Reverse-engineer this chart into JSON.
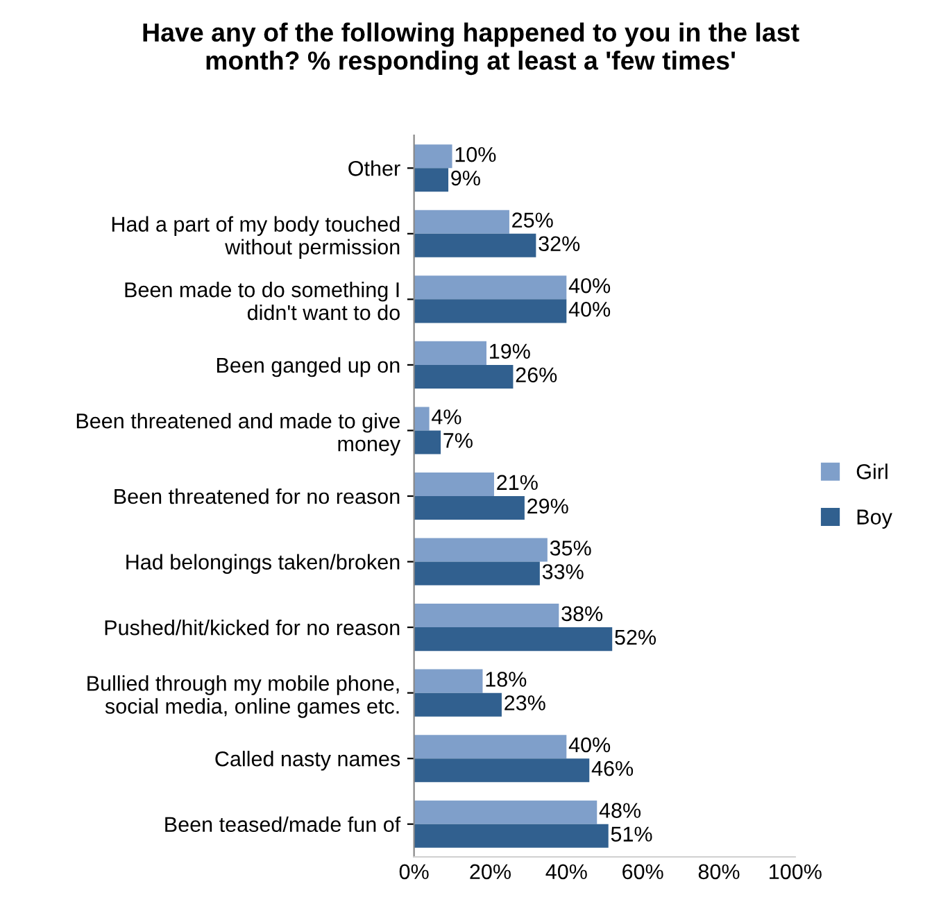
{
  "chart_data": {
    "type": "bar",
    "orientation": "horizontal",
    "title": "Have any of the following happened to you in the last\nmonth? % responding at least a 'few times'",
    "categories": [
      "Other",
      "Had a part of my body touched\nwithout permission",
      "Been made to do something I\ndidn't want to do",
      "Been ganged up on",
      "Been threatened and made to give\nmoney",
      "Been threatened for no reason",
      "Had belongings taken/broken",
      "Pushed/hit/kicked for no reason",
      "Bullied through my mobile phone,\nsocial media, online games etc.",
      "Called nasty names",
      "Been teased/made fun of"
    ],
    "series": [
      {
        "name": "Girl",
        "color": "#7f9fca",
        "values": [
          10,
          25,
          40,
          19,
          4,
          21,
          35,
          38,
          18,
          40,
          48
        ],
        "value_labels": [
          "10%",
          "25%",
          "40%",
          "19%",
          "4%",
          "21%",
          "35%",
          "38%",
          "18%",
          "40%",
          "48%"
        ]
      },
      {
        "name": "Boy",
        "color": "#31608f",
        "values": [
          9,
          32,
          40,
          26,
          7,
          29,
          33,
          52,
          23,
          46,
          51
        ],
        "value_labels": [
          "9%",
          "32%",
          "40%",
          "26%",
          "7%",
          "29%",
          "33%",
          "52%",
          "23%",
          "46%",
          "51%"
        ]
      }
    ],
    "xlim": [
      0,
      100
    ],
    "xticks": [
      {
        "value": 0,
        "label": "0%"
      },
      {
        "value": 20,
        "label": "20%"
      },
      {
        "value": 40,
        "label": "40%"
      },
      {
        "value": 60,
        "label": "60%"
      },
      {
        "value": 80,
        "label": "80%"
      },
      {
        "value": 100,
        "label": "100%"
      }
    ],
    "legend": "right"
  }
}
